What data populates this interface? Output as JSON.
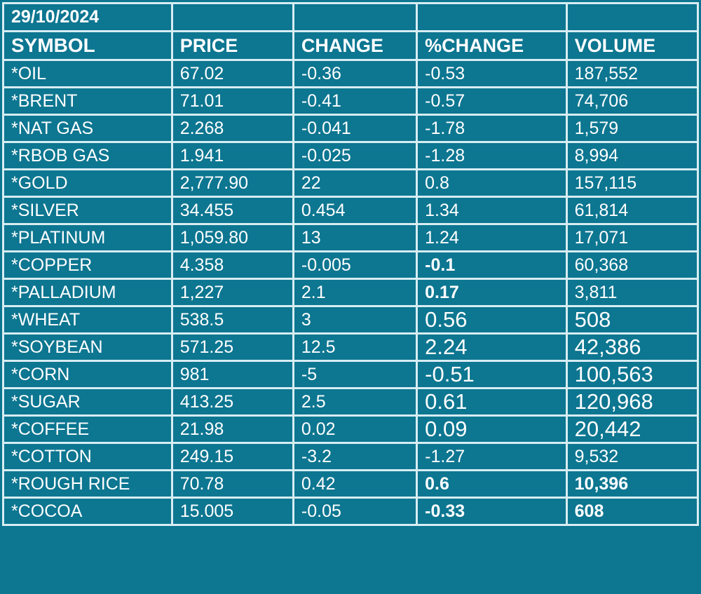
{
  "date": "29/10/2024",
  "headers": [
    "SYMBOL",
    "PRICE",
    "CHANGE",
    "%CHANGE",
    "VOLUME"
  ],
  "rows": [
    {
      "symbol": "*OIL",
      "price": "67.02",
      "change": "-0.36",
      "pct_change": "-0.53",
      "volume": "187,552"
    },
    {
      "symbol": "*BRENT",
      "price": "71.01",
      "change": "-0.41",
      "pct_change": "-0.57",
      "volume": "74,706"
    },
    {
      "symbol": "*NAT GAS",
      "price": "2.268",
      "change": "-0.041",
      "pct_change": "-1.78",
      "volume": "1,579"
    },
    {
      "symbol": "*RBOB GAS",
      "price": "1.941",
      "change": "-0.025",
      "pct_change": "-1.28",
      "volume": "8,994"
    },
    {
      "symbol": "*GOLD",
      "price": "2,777.90",
      "change": "22",
      "pct_change": "0.8",
      "volume": "157,115"
    },
    {
      "symbol": "*SILVER",
      "price": "34.455",
      "change": "0.454",
      "pct_change": "1.34",
      "volume": "61,814"
    },
    {
      "symbol": "*PLATINUM",
      "price": "1,059.80",
      "change": "13",
      "pct_change": "1.24",
      "volume": "17,071"
    },
    {
      "symbol": "*COPPER",
      "price": "4.358",
      "change": "-0.005",
      "pct_change": "-0.1",
      "volume": "60,368"
    },
    {
      "symbol": "*PALLADIUM",
      "price": "1,227",
      "change": "2.1",
      "pct_change": "0.17",
      "volume": "3,811"
    },
    {
      "symbol": "*WHEAT",
      "price": "538.5",
      "change": "3",
      "pct_change": "0.56",
      "volume": "508"
    },
    {
      "symbol": "*SOYBEAN",
      "price": "571.25",
      "change": "12.5",
      "pct_change": "2.24",
      "volume": "42,386"
    },
    {
      "symbol": "*CORN",
      "price": "981",
      "change": "-5",
      "pct_change": "-0.51",
      "volume": "100,563"
    },
    {
      "symbol": "*SUGAR",
      "price": "413.25",
      "change": "2.5",
      "pct_change": "0.61",
      "volume": "120,968"
    },
    {
      "symbol": "*COFFEE",
      "price": "21.98",
      "change": "0.02",
      "pct_change": "0.09",
      "volume": "20,442"
    },
    {
      "symbol": "*COTTON",
      "price": "249.15",
      "change": "-3.2",
      "pct_change": "-1.27",
      "volume": "9,532"
    },
    {
      "symbol": "*ROUGH RICE",
      "price": "70.78",
      "change": "0.42",
      "pct_change": "0.6",
      "volume": "10,396"
    },
    {
      "symbol": "*COCOA",
      "price": "15.005",
      "change": "-0.05",
      "pct_change": "-0.33",
      "volume": "608"
    }
  ]
}
